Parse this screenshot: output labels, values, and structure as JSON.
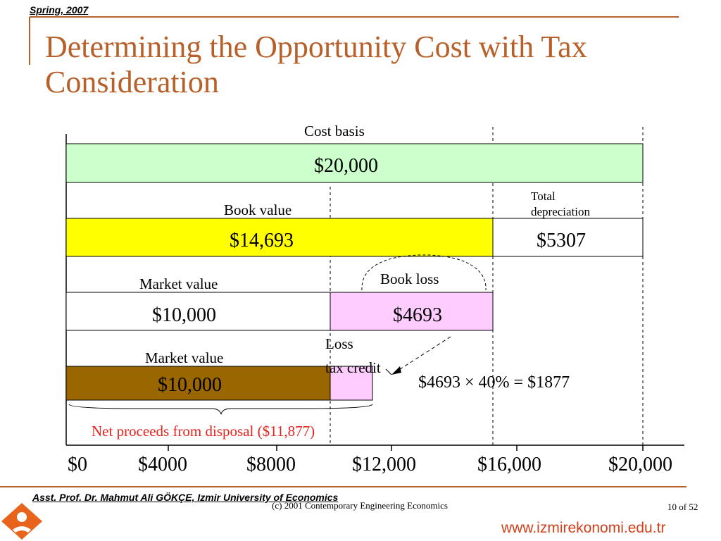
{
  "header": {
    "season": "Spring, 2007"
  },
  "slide": {
    "title": "Determining the Opportunity Cost with Tax Consideration"
  },
  "diagram": {
    "cost_basis_label": "Cost basis",
    "cost_basis_value": "$20,000",
    "book_value_label": "Book value",
    "book_value_value": "$14,693",
    "total_depreciation_label": "Total depreciation",
    "total_depreciation_value": "$5307",
    "market_value_label_1": "Market value",
    "market_value_value_1": "$10,000",
    "book_loss_label": "Book loss",
    "book_loss_value": "$4693",
    "loss_tax_credit_label_1": "Loss",
    "loss_tax_credit_label_2": "tax credit",
    "market_value_label_2": "Market value",
    "market_value_value_2": "$10,000",
    "formula": "$4693 × 40% = $1877",
    "net_proceeds_label": "Net proceeds from disposal ($11,877)",
    "axis_ticks": [
      "$0",
      "$4000",
      "$8000",
      "$12,000",
      "$16,000",
      "$20,000"
    ],
    "colors": {
      "cost_basis_fill": "#ccffcc",
      "book_value_fill": "#ffff00",
      "book_loss_fill": "#ffccff",
      "market_value_fill": "#996600",
      "title": "#b8602a",
      "net_proceeds_text": "#e8221c"
    }
  },
  "footer": {
    "author": "Asst. Prof. Dr. Mahmut Ali GÖKÇE, Izmir University of Economics",
    "copyright": "(c) 2001 Contemporary Engineering Economics",
    "page": "10 of  52",
    "website": "www.izmirekonomi.edu.tr"
  }
}
